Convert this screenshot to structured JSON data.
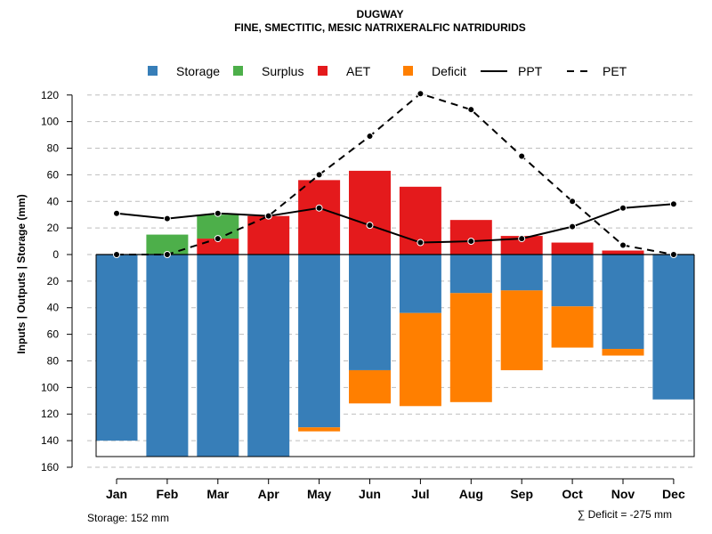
{
  "chart_data": {
    "type": "bar",
    "title": "DUGWAY",
    "subtitle": "FINE, SMECTITIC, MESIC NATRIXERALFIC NATRIDURIDS",
    "ylabel": "Inputs | Outputs | Storage    (mm)",
    "xlabel": "",
    "categories": [
      "Jan",
      "Feb",
      "Mar",
      "Apr",
      "May",
      "Jun",
      "Jul",
      "Aug",
      "Sep",
      "Oct",
      "Nov",
      "Dec"
    ],
    "ylim": [
      -160,
      130
    ],
    "y_ticks": [
      120,
      100,
      80,
      60,
      40,
      20,
      0,
      -20,
      -40,
      -60,
      -80,
      -100,
      -120,
      -140,
      -160
    ],
    "y_tick_labels": [
      "120",
      "100",
      "80",
      "60",
      "40",
      "20",
      "0",
      "20",
      "40",
      "60",
      "80",
      "100",
      "120",
      "140",
      "160"
    ],
    "grid": true,
    "legend_position": "top",
    "legend": [
      {
        "name": "Storage",
        "kind": "box",
        "color": "#377EB8"
      },
      {
        "name": "Surplus",
        "kind": "box",
        "color": "#4DAF4A"
      },
      {
        "name": "AET",
        "kind": "box",
        "color": "#E41A1C"
      },
      {
        "name": "Deficit",
        "kind": "box",
        "color": "#FF7F00"
      },
      {
        "name": "PPT",
        "kind": "solid-line",
        "color": "#000000"
      },
      {
        "name": "PET",
        "kind": "dashed-line",
        "color": "#000000"
      }
    ],
    "series": [
      {
        "name": "Storage",
        "values": [
          -140,
          -152,
          -152,
          -152,
          -130,
          -87,
          -44,
          -29,
          -27,
          -39,
          -71,
          -109
        ]
      },
      {
        "name": "Surplus",
        "values": [
          0,
          15,
          18,
          0,
          0,
          0,
          0,
          0,
          0,
          0,
          0,
          0
        ]
      },
      {
        "name": "AET",
        "values": [
          0,
          0,
          12,
          29,
          56,
          63,
          51,
          26,
          14,
          9,
          3,
          0
        ]
      },
      {
        "name": "Deficit",
        "values": [
          0,
          0,
          0,
          0,
          3,
          25,
          70,
          82,
          60,
          31,
          5,
          0
        ]
      },
      {
        "name": "PPT",
        "values": [
          31,
          27,
          31,
          29,
          35,
          22,
          9,
          10,
          12,
          21,
          35,
          38
        ]
      },
      {
        "name": "PET",
        "values": [
          0,
          0,
          12,
          29,
          60,
          89,
          121,
          109,
          74,
          40,
          7,
          0
        ]
      }
    ],
    "colors": {
      "storage": "#377EB8",
      "surplus": "#4DAF4A",
      "aet": "#E41A1C",
      "deficit": "#FF7F00",
      "line": "#000000",
      "grid": "#BEBEBE"
    }
  },
  "footer": {
    "storage_note": "Storage: 152 mm",
    "deficit_note": "∑ Deficit = -275 mm"
  }
}
